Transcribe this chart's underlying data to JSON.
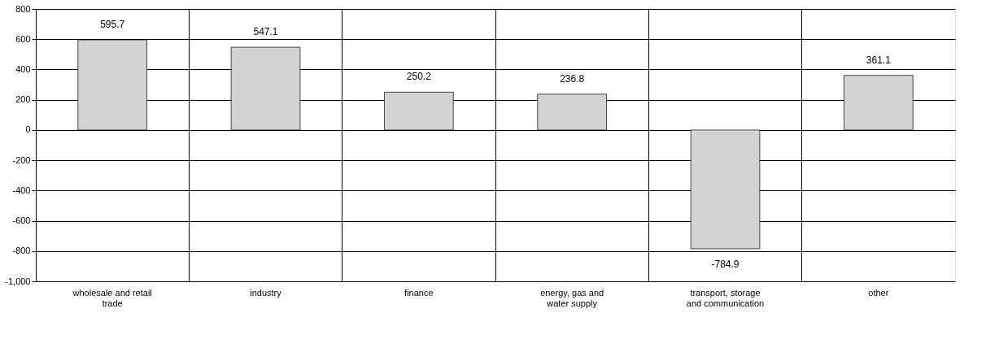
{
  "chart_data": {
    "type": "bar",
    "categories": [
      "wholesale and retail trade",
      "industry",
      "finance",
      "energy, gas and water supply",
      "transport, storage and communication",
      "other"
    ],
    "values": [
      595.7,
      547.1,
      250.2,
      236.8,
      -784.9,
      361.1
    ],
    "color": "#d3d3d3",
    "ylim": [
      -1000,
      800
    ],
    "yticks": [
      {
        "value": -1000,
        "label": "-1,000"
      },
      -800,
      -600,
      -400,
      -200,
      0,
      200,
      400,
      600,
      800
    ],
    "grid": true,
    "data_labels": true
  }
}
